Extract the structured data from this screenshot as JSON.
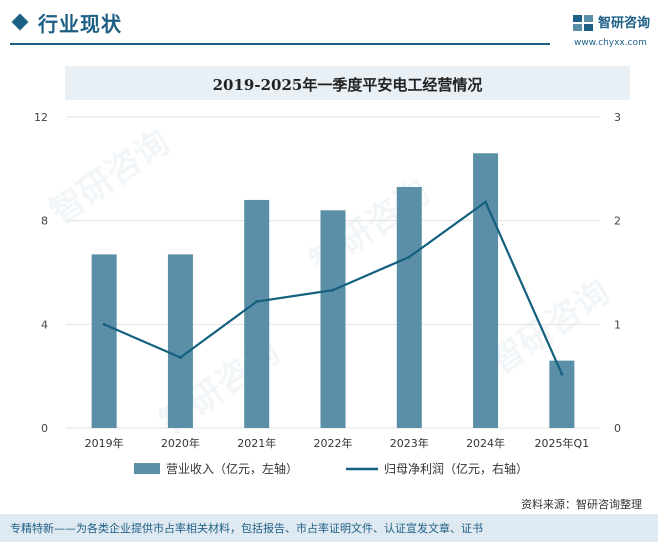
{
  "header": {
    "section_title": "行业现状",
    "brand_name": "智研咨询",
    "brand_url": "www.chyxx.com"
  },
  "chart_data": {
    "type": "bar+line",
    "title": "2019-2025年一季度平安电工经营情况",
    "categories": [
      "2019年",
      "2020年",
      "2021年",
      "2022年",
      "2023年",
      "2024年",
      "2025年Q1"
    ],
    "series": [
      {
        "name": "营业收入（亿元，左轴）",
        "type": "bar",
        "axis": "left",
        "values": [
          6.7,
          6.7,
          8.8,
          8.4,
          9.3,
          10.6,
          2.6
        ]
      },
      {
        "name": "归母净利润（亿元，右轴）",
        "type": "line",
        "axis": "right",
        "values": [
          1.0,
          0.68,
          1.22,
          1.33,
          1.65,
          2.18,
          0.52
        ]
      }
    ],
    "left_axis": {
      "min": 0,
      "max": 12,
      "ticks": [
        "0",
        "4",
        "8",
        "12"
      ]
    },
    "right_axis": {
      "min": 0,
      "max": 3,
      "ticks": [
        "0",
        "1",
        "2",
        "3"
      ]
    },
    "colors": {
      "bar": "#5b8fa8",
      "line": "#14607f"
    }
  },
  "footer": {
    "source": "资料来源：智研咨询整理",
    "note": "专精特新——为各类企业提供市占率相关材料，包括报告、市占率证明文件、认证宣发文章、证书"
  },
  "watermark": "智研咨询"
}
